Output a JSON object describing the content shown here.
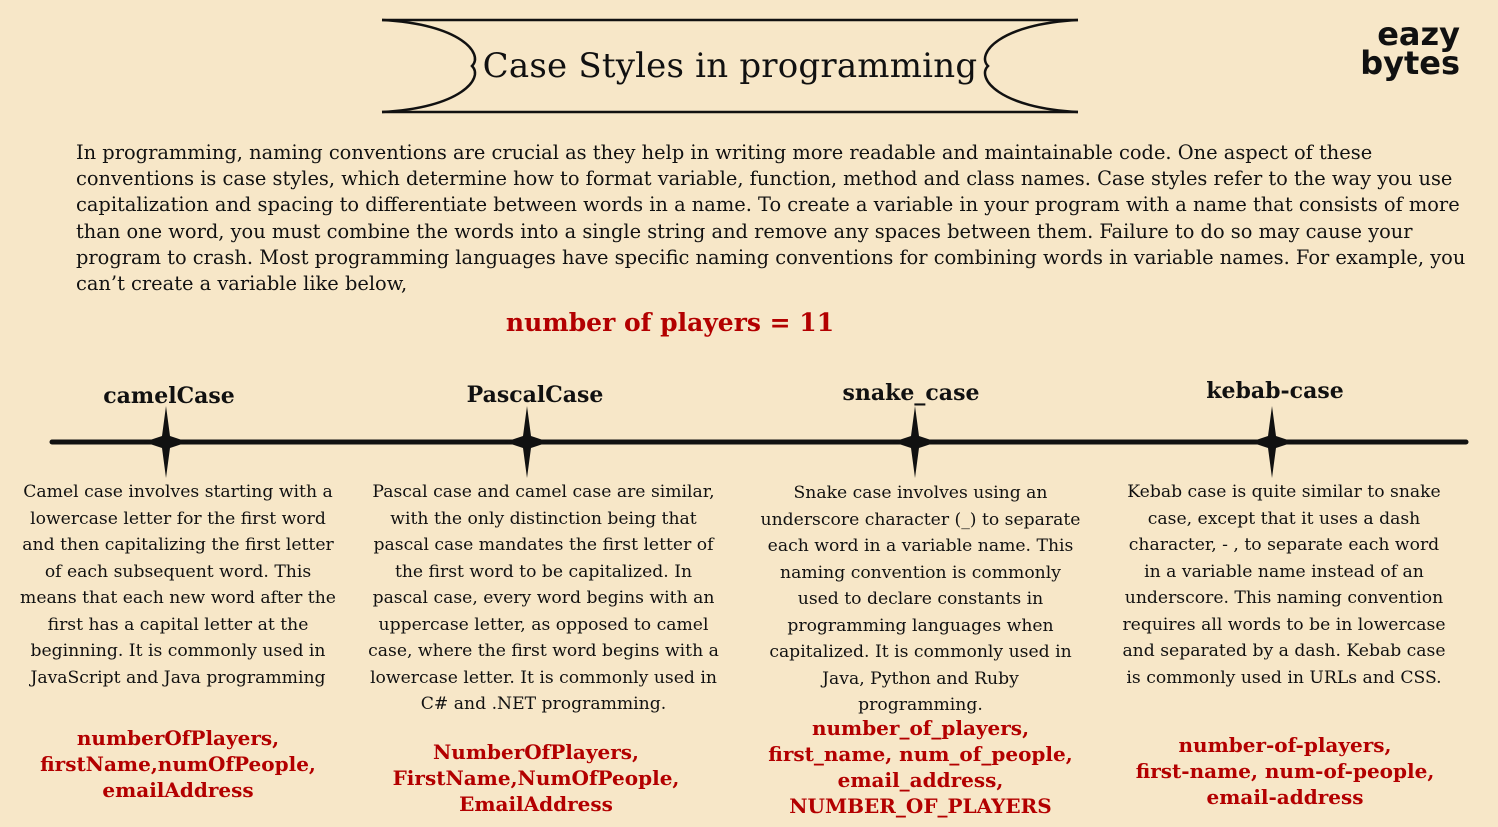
{
  "title": "Case Styles in programming",
  "logo": {
    "line1": "eazy",
    "line2": "bytes"
  },
  "intro": "In programming, naming conventions are crucial as they help in writing more readable and maintainable code. One aspect of these conventions is case styles, which determine how to format variable, function, method and class names. Case styles refer to the way you use capitalization and spacing to differentiate between words in a name. To create a variable in your program with a name that consists of more than one word, you must combine the words into a single string and remove any spaces between them. Failure to do so may cause your program to crash. Most programming languages have specific naming conventions for combining words in variable names. For example, you can’t create a variable like below,",
  "example": "number of players = 11",
  "colors": {
    "background": "#f7e7c8",
    "accent": "#b30000",
    "text": "#111111"
  },
  "columns": [
    {
      "heading": "camelCase",
      "description": "Camel case involves starting with a lowercase letter for the first word and then capitalizing the first letter of each subsequent word. This means that each new word after the first has a capital letter at the beginning. It is commonly used in JavaScript and Java programming",
      "examples": [
        "numberOfPlayers,",
        "firstName,numOfPeople,",
        "emailAddress"
      ]
    },
    {
      "heading": "PascalCase",
      "description": "Pascal case and camel case are similar, with the only distinction being that pascal case mandates the first letter of the first word to be capitalized. In pascal case, every word begins with an uppercase letter, as opposed to camel case, where the first word begins with a lowercase letter. It is commonly used in C# and .NET programming.",
      "examples": [
        "NumberOfPlayers,",
        "FirstName,NumOfPeople,",
        "EmailAddress"
      ]
    },
    {
      "heading": "snake_case",
      "description": "Snake case involves using an underscore character (_) to separate each word in a variable name. This naming convention is commonly used to declare constants in programming languages when capitalized. It is commonly used in Java, Python and Ruby programming.",
      "examples": [
        "number_of_players,",
        "first_name, num_of_people,",
        "email_address,",
        "NUMBER_OF_PLAYERS"
      ]
    },
    {
      "heading": "kebab-case",
      "description": "Kebab case is quite similar to snake case, except that it uses a dash character, - , to separate each word in a variable name instead of an underscore. This naming convention requires all words to be in lowercase and separated by a dash. Kebab case is commonly used in URLs and CSS.",
      "examples": [
        "number-of-players,",
        "first-name, num-of-people,",
        "email-address"
      ]
    }
  ]
}
